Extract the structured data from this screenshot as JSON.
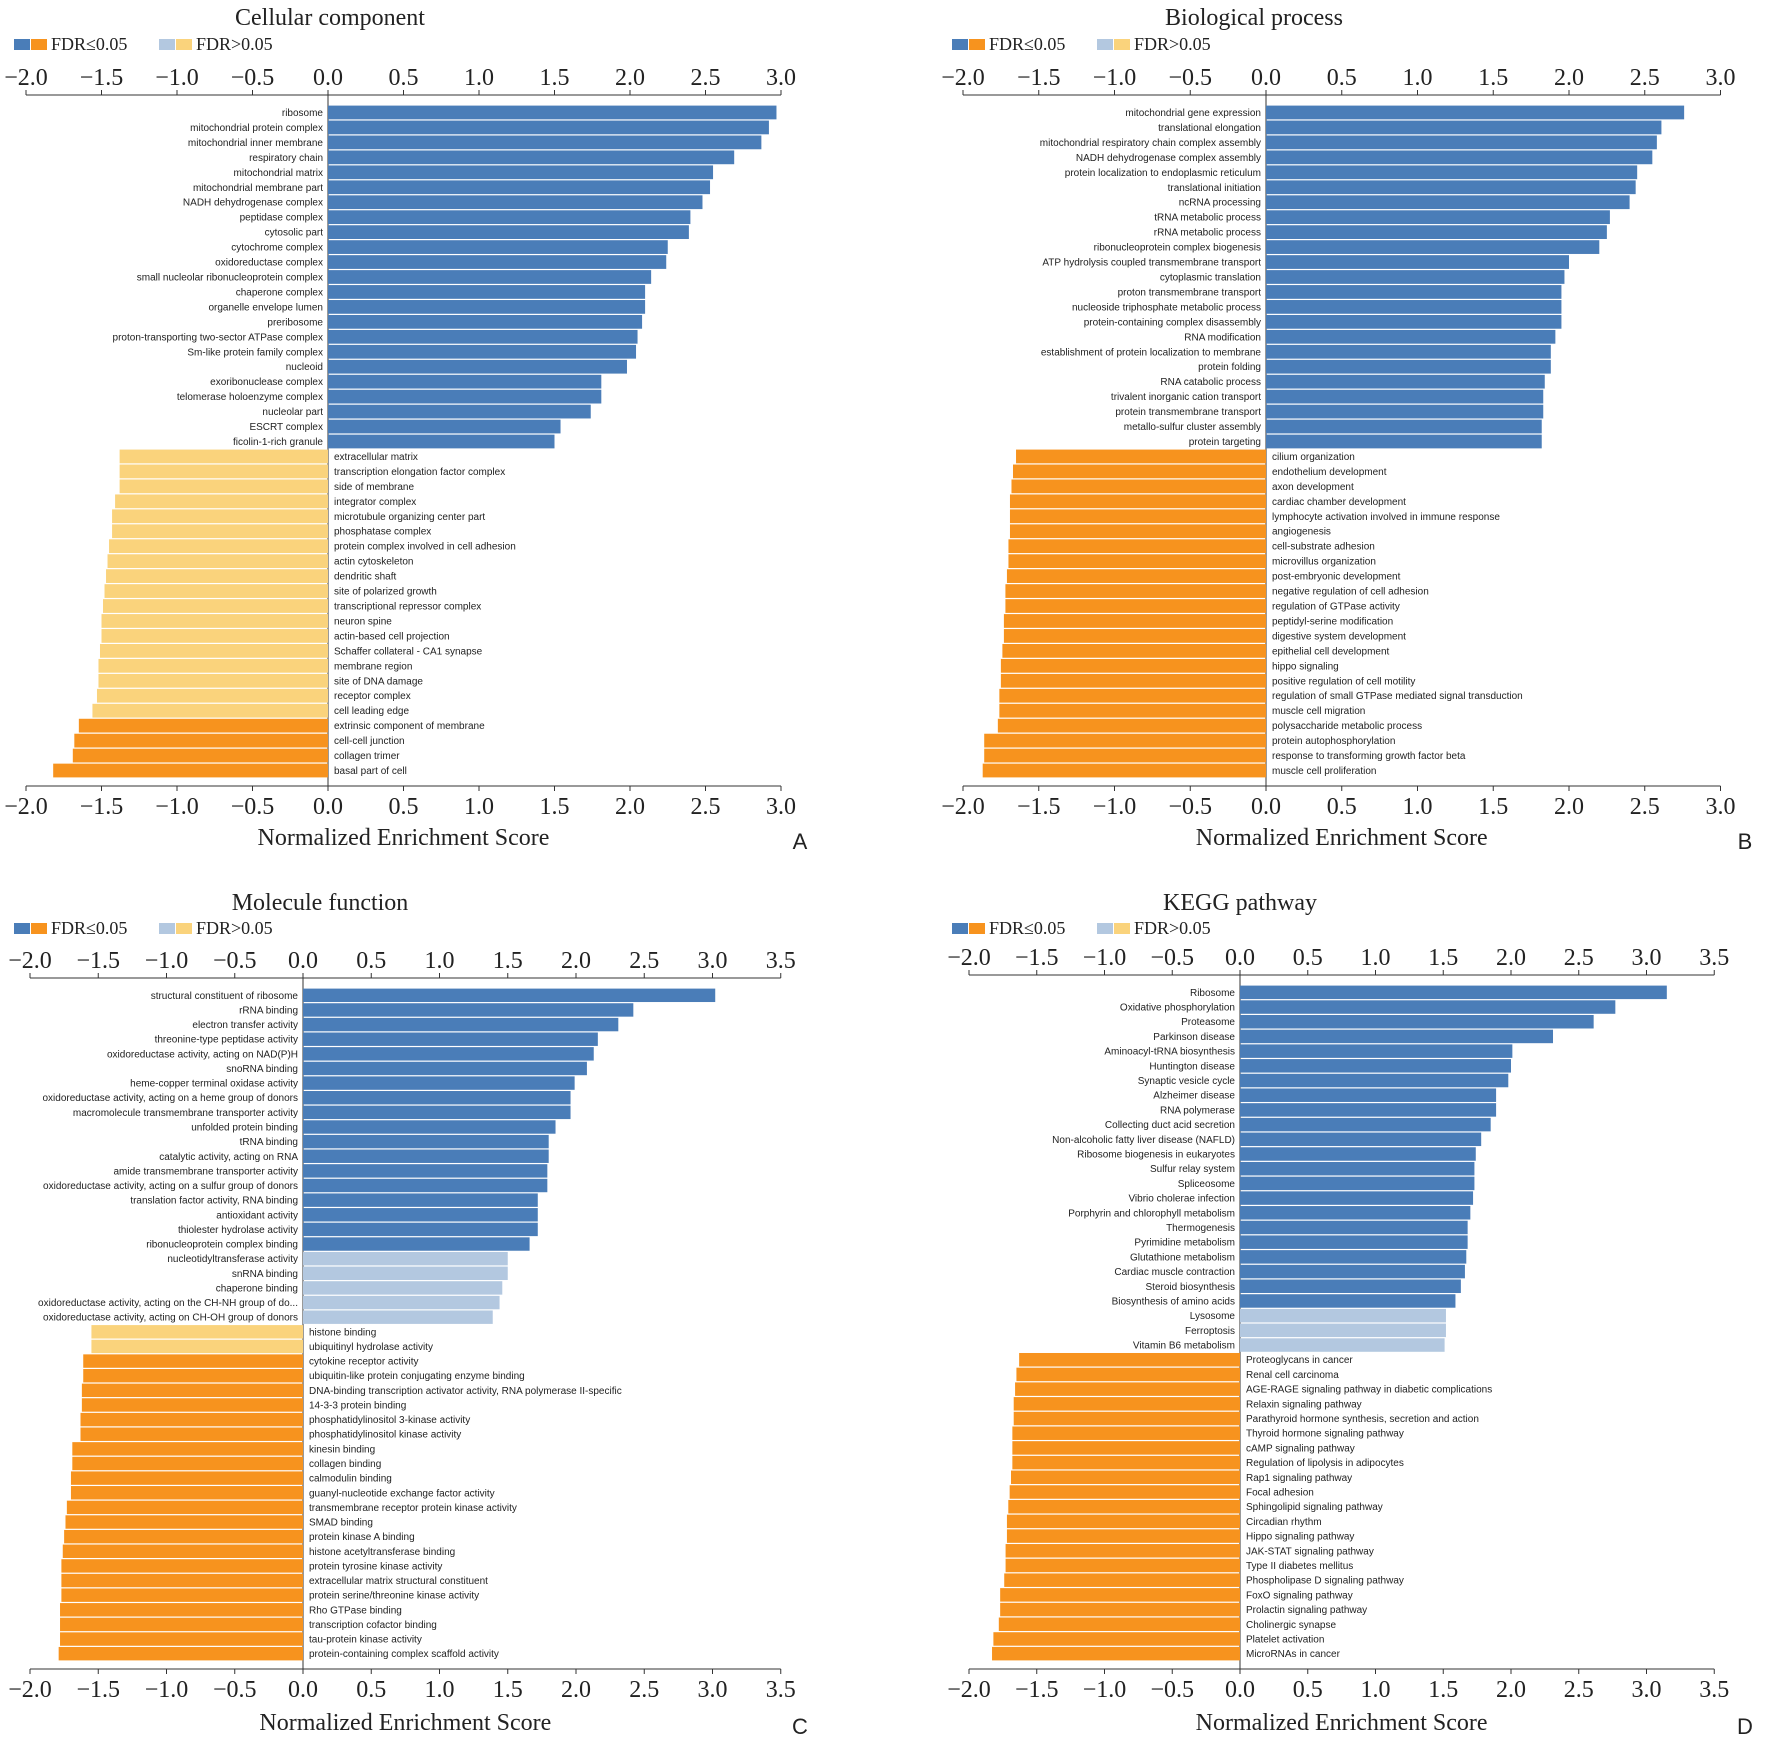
{
  "colors": {
    "up_sig": "#4a7db8",
    "up_nonsig": "#b3c8e0",
    "down_sig": "#f7931e",
    "down_nonsig": "#fad37c",
    "axis": "#333333",
    "label": "#222222"
  },
  "legend": {
    "sig": "FDR≤0.05",
    "nonsig": "FDR>0.05"
  },
  "chart_data": [
    {
      "panel": "A",
      "type": "bar",
      "orientation": "horizontal",
      "title": "Cellular component",
      "xlabel": "Normalized Enrichment Score",
      "xlim": [
        -2.0,
        3.0
      ],
      "ticks": [
        "−2.0",
        "−1.5",
        "−1.0",
        "−0.5",
        "0.0",
        "0.5",
        "1.0",
        "1.5",
        "2.0",
        "2.5",
        "3.0"
      ],
      "categories": [
        "ribosome",
        "mitochondrial protein complex",
        "mitochondrial inner membrane",
        "respiratory chain",
        "mitochondrial matrix",
        "mitochondrial membrane part",
        "NADH dehydrogenase complex",
        "peptidase complex",
        "cytosolic part",
        "cytochrome complex",
        "oxidoreductase complex",
        "small nucleolar ribonucleoprotein complex",
        "chaperone complex",
        "organelle envelope lumen",
        "preribosome",
        "proton-transporting two-sector ATPase complex",
        "Sm-like protein family complex",
        "nucleoid",
        "exoribonuclease complex",
        "telomerase holoenzyme complex",
        "nucleolar part",
        "ESCRT complex",
        "ficolin-1-rich granule",
        "extracellular matrix",
        "transcription elongation factor complex",
        "side of membrane",
        "integrator complex",
        "microtubule organizing center part",
        "phosphatase complex",
        "protein complex involved in cell adhesion",
        "actin cytoskeleton",
        "dendritic shaft",
        "site of polarized growth",
        "transcriptional repressor complex",
        "neuron spine",
        "actin-based cell projection",
        "Schaffer collateral - CA1 synapse",
        "membrane region",
        "site of DNA damage",
        "receptor complex",
        "cell leading edge",
        "extrinsic component of membrane",
        "cell-cell junction",
        "collagen trimer",
        "basal part of cell"
      ],
      "values": [
        2.97,
        2.92,
        2.87,
        2.69,
        2.55,
        2.53,
        2.48,
        2.4,
        2.39,
        2.25,
        2.24,
        2.14,
        2.1,
        2.1,
        2.08,
        2.05,
        2.04,
        1.98,
        1.81,
        1.81,
        1.74,
        1.54,
        1.5,
        -1.38,
        -1.38,
        -1.38,
        -1.41,
        -1.43,
        -1.43,
        -1.45,
        -1.46,
        -1.47,
        -1.48,
        -1.49,
        -1.5,
        -1.5,
        -1.51,
        -1.52,
        -1.52,
        -1.53,
        -1.56,
        -1.65,
        -1.68,
        -1.69,
        -1.82
      ],
      "significant": [
        true,
        true,
        true,
        true,
        true,
        true,
        true,
        true,
        true,
        true,
        true,
        true,
        true,
        true,
        true,
        true,
        true,
        true,
        true,
        true,
        true,
        true,
        true,
        false,
        false,
        false,
        false,
        false,
        false,
        false,
        false,
        false,
        false,
        false,
        false,
        false,
        false,
        false,
        false,
        false,
        false,
        true,
        true,
        true,
        true
      ]
    },
    {
      "panel": "B",
      "type": "bar",
      "orientation": "horizontal",
      "title": "Biological process",
      "xlabel": "Normalized Enrichment Score",
      "xlim": [
        -2.0,
        3.0
      ],
      "ticks": [
        "−2.0",
        "−1.5",
        "−1.0",
        "−0.5",
        "0.0",
        "0.5",
        "1.0",
        "1.5",
        "2.0",
        "2.5",
        "3.0"
      ],
      "categories": [
        "mitochondrial gene expression",
        "translational elongation",
        "mitochondrial respiratory chain complex assembly",
        "NADH dehydrogenase complex assembly",
        "protein localization to endoplasmic reticulum",
        "translational initiation",
        "ncRNA processing",
        "tRNA metabolic process",
        "rRNA metabolic process",
        "ribonucleoprotein complex biogenesis",
        "ATP hydrolysis coupled transmembrane transport",
        "cytoplasmic translation",
        "proton transmembrane transport",
        "nucleoside triphosphate metabolic process",
        "protein-containing complex disassembly",
        "RNA modification",
        "establishment of protein localization to membrane",
        "protein folding",
        "RNA catabolic process",
        "trivalent inorganic cation transport",
        "protein transmembrane transport",
        "metallo-sulfur cluster assembly",
        "protein targeting",
        "cilium organization",
        "endothelium development",
        "axon development",
        "cardiac chamber development",
        "lymphocyte activation involved in immune response",
        "angiogenesis",
        "cell-substrate adhesion",
        "microvillus organization",
        "post-embryonic development",
        "negative regulation of cell adhesion",
        "regulation of GTPase activity",
        "peptidyl-serine modification",
        "digestive system development",
        "epithelial cell development",
        "hippo signaling",
        "positive regulation of cell motility",
        "regulation of small GTPase mediated signal transduction",
        "muscle cell migration",
        "polysaccharide metabolic process",
        "protein autophosphorylation",
        "response to transforming growth factor beta",
        "muscle cell proliferation"
      ],
      "values": [
        2.76,
        2.61,
        2.58,
        2.55,
        2.45,
        2.44,
        2.4,
        2.27,
        2.25,
        2.2,
        2.0,
        1.97,
        1.95,
        1.95,
        1.95,
        1.91,
        1.88,
        1.88,
        1.84,
        1.83,
        1.83,
        1.82,
        1.82,
        -1.65,
        -1.67,
        -1.68,
        -1.69,
        -1.69,
        -1.69,
        -1.7,
        -1.7,
        -1.71,
        -1.72,
        -1.72,
        -1.73,
        -1.73,
        -1.74,
        -1.75,
        -1.75,
        -1.76,
        -1.76,
        -1.77,
        -1.86,
        -1.86,
        -1.87
      ],
      "significant": [
        true,
        true,
        true,
        true,
        true,
        true,
        true,
        true,
        true,
        true,
        true,
        true,
        true,
        true,
        true,
        true,
        true,
        true,
        true,
        true,
        true,
        true,
        true,
        true,
        true,
        true,
        true,
        true,
        true,
        true,
        true,
        true,
        true,
        true,
        true,
        true,
        true,
        true,
        true,
        true,
        true,
        true,
        true,
        true,
        true
      ]
    },
    {
      "panel": "C",
      "type": "bar",
      "orientation": "horizontal",
      "title": "Molecule function",
      "xlabel": "Normalized Enrichment Score",
      "xlim": [
        -2.0,
        3.5
      ],
      "ticks": [
        "−2.0",
        "−1.5",
        "−1.0",
        "−0.5",
        "0.0",
        "0.5",
        "1.0",
        "1.5",
        "2.0",
        "2.5",
        "3.0",
        "3.5"
      ],
      "categories": [
        "structural constituent of ribosome",
        "rRNA binding",
        "electron transfer activity",
        "threonine-type peptidase activity",
        "oxidoreductase activity, acting on NAD(P)H",
        "snoRNA binding",
        "heme-copper terminal oxidase activity",
        "oxidoreductase activity, acting on a heme group of donors",
        "macromolecule transmembrane transporter activity",
        "unfolded protein binding",
        "tRNA binding",
        "catalytic activity, acting on RNA",
        "amide transmembrane transporter activity",
        "oxidoreductase activity, acting on a sulfur group of donors",
        "translation factor activity, RNA binding",
        "antioxidant activity",
        "thiolester hydrolase activity",
        "ribonucleoprotein complex binding",
        "nucleotidyltransferase activity",
        "snRNA binding",
        "chaperone binding",
        "oxidoreductase activity, acting on the CH-NH group of do...",
        "oxidoreductase activity, acting on CH-OH group of donors",
        "histone binding",
        "ubiquitinyl hydrolase activity",
        "cytokine receptor activity",
        "ubiquitin-like protein conjugating enzyme binding",
        "DNA-binding transcription activator activity, RNA polymerase II-specific",
        "14-3-3 protein binding",
        "phosphatidylinositol 3-kinase activity",
        "phosphatidylinositol kinase activity",
        "kinesin binding",
        "collagen binding",
        "calmodulin binding",
        "guanyl-nucleotide exchange factor activity",
        "transmembrane receptor protein kinase activity",
        "SMAD binding",
        "protein kinase A binding",
        "histone acetyltransferase binding",
        "protein tyrosine kinase activity",
        "extracellular matrix structural constituent",
        "protein serine/threonine kinase activity",
        "Rho GTPase binding",
        "transcription cofactor binding",
        "tau-protein kinase activity",
        "protein-containing complex scaffold activity"
      ],
      "values": [
        3.02,
        2.42,
        2.31,
        2.16,
        2.13,
        2.08,
        1.99,
        1.96,
        1.96,
        1.85,
        1.8,
        1.8,
        1.79,
        1.79,
        1.72,
        1.72,
        1.72,
        1.66,
        1.5,
        1.5,
        1.46,
        1.44,
        1.39,
        -1.55,
        -1.55,
        -1.61,
        -1.61,
        -1.62,
        -1.62,
        -1.63,
        -1.63,
        -1.69,
        -1.69,
        -1.7,
        -1.7,
        -1.73,
        -1.74,
        -1.75,
        -1.76,
        -1.77,
        -1.77,
        -1.77,
        -1.78,
        -1.78,
        -1.78,
        -1.79
      ],
      "significant": [
        true,
        true,
        true,
        true,
        true,
        true,
        true,
        true,
        true,
        true,
        true,
        true,
        true,
        true,
        true,
        true,
        true,
        true,
        false,
        false,
        false,
        false,
        false,
        false,
        false,
        true,
        true,
        true,
        true,
        true,
        true,
        true,
        true,
        true,
        true,
        true,
        true,
        true,
        true,
        true,
        true,
        true,
        true,
        true,
        true,
        true
      ]
    },
    {
      "panel": "D",
      "type": "bar",
      "orientation": "horizontal",
      "title": "KEGG pathway",
      "xlabel": "Normalized Enrichment Score",
      "xlim": [
        -2.0,
        3.5
      ],
      "ticks": [
        "−2.0",
        "−1.5",
        "−1.0",
        "−0.5",
        "0.0",
        "0.5",
        "1.0",
        "1.5",
        "2.0",
        "2.5",
        "3.0",
        "3.5"
      ],
      "categories": [
        "Ribosome",
        "Oxidative phosphorylation",
        "Proteasome",
        "Parkinson disease",
        "Aminoacyl-tRNA biosynthesis",
        "Huntington disease",
        "Synaptic vesicle cycle",
        "Alzheimer disease",
        "RNA polymerase",
        "Collecting duct acid secretion",
        "Non-alcoholic fatty liver disease (NAFLD)",
        "Ribosome biogenesis in eukaryotes",
        "Sulfur relay system",
        "Spliceosome",
        "Vibrio cholerae infection",
        "Porphyrin and chlorophyll metabolism",
        "Thermogenesis",
        "Pyrimidine metabolism",
        "Glutathione metabolism",
        "Cardiac muscle contraction",
        "Steroid biosynthesis",
        "Biosynthesis of amino acids",
        "Lysosome",
        "Ferroptosis",
        "Vitamin B6 metabolism",
        "Proteoglycans in cancer",
        "Renal cell carcinoma",
        "AGE-RAGE signaling pathway in diabetic complications",
        "Relaxin signaling pathway",
        "Parathyroid hormone synthesis, secretion and action",
        "Thyroid hormone signaling pathway",
        "cAMP signaling pathway",
        "Regulation of lipolysis in adipocytes",
        "Rap1 signaling pathway",
        "Focal adhesion",
        "Sphingolipid signaling pathway",
        "Circadian rhythm",
        "Hippo signaling pathway",
        "JAK-STAT signaling pathway",
        "Type II diabetes mellitus",
        "Phospholipase D signaling pathway",
        "FoxO signaling pathway",
        "Prolactin signaling pathway",
        "Cholinergic synapse",
        "Platelet activation",
        "MicroRNAs in cancer"
      ],
      "values": [
        3.15,
        2.77,
        2.61,
        2.31,
        2.01,
        2.0,
        1.98,
        1.89,
        1.89,
        1.85,
        1.78,
        1.74,
        1.73,
        1.73,
        1.72,
        1.7,
        1.68,
        1.68,
        1.67,
        1.66,
        1.63,
        1.59,
        1.52,
        1.52,
        1.51,
        -1.63,
        -1.65,
        -1.66,
        -1.67,
        -1.67,
        -1.68,
        -1.68,
        -1.68,
        -1.69,
        -1.7,
        -1.71,
        -1.72,
        -1.72,
        -1.73,
        -1.73,
        -1.74,
        -1.77,
        -1.77,
        -1.78,
        -1.82,
        -1.83
      ],
      "significant": [
        true,
        true,
        true,
        true,
        true,
        true,
        true,
        true,
        true,
        true,
        true,
        true,
        true,
        true,
        true,
        true,
        true,
        true,
        true,
        true,
        true,
        true,
        false,
        false,
        false,
        true,
        true,
        true,
        true,
        true,
        true,
        true,
        true,
        true,
        true,
        true,
        true,
        true,
        true,
        true,
        true,
        true,
        true,
        true,
        true,
        true
      ]
    }
  ]
}
